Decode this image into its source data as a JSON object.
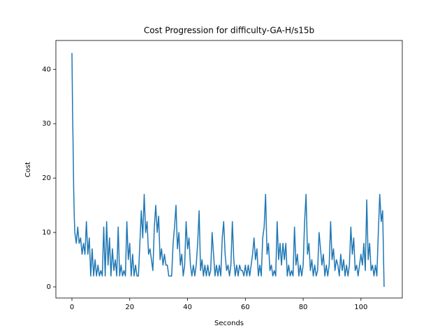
{
  "chart_data": {
    "type": "line",
    "title": "Cost Progression for difficulty-GA-H/s15b",
    "x_label": "Seconds",
    "y_label": "Cost",
    "x": [
      0,
      0.2,
      0.4,
      0.6,
      0.8,
      1,
      1.5,
      2,
      2.5,
      3,
      3.5,
      4,
      4.5,
      5,
      5.5,
      6,
      6.5,
      7,
      7.5,
      8,
      8.5,
      9,
      9.5,
      10,
      10.5,
      11,
      11.5,
      12,
      12.5,
      13,
      13.5,
      14,
      14.5,
      15,
      15.5,
      16,
      16.5,
      17,
      17.5,
      18,
      18.5,
      19,
      19.5,
      20,
      20.5,
      21,
      21.5,
      22,
      22.5,
      23,
      23.5,
      24,
      24.5,
      25,
      25.5,
      26,
      26.5,
      27,
      27.5,
      28,
      28.5,
      29,
      29.5,
      30,
      30.5,
      31,
      31.5,
      32,
      32.5,
      33,
      33.5,
      34,
      34.5,
      35,
      35.5,
      36,
      36.5,
      37,
      37.5,
      38,
      38.5,
      39,
      39.5,
      40,
      40.5,
      41,
      41.5,
      42,
      42.5,
      43,
      43.5,
      44,
      44.5,
      45,
      45.5,
      46,
      46.5,
      47,
      47.5,
      48,
      48.5,
      49,
      49.5,
      50,
      50.5,
      51,
      51.5,
      52,
      52.5,
      53,
      53.5,
      54,
      54.5,
      55,
      55.5,
      56,
      56.5,
      57,
      57.5,
      58,
      58.5,
      59,
      59.5,
      60,
      60.5,
      61,
      61.5,
      62,
      62.5,
      63,
      63.5,
      64,
      64.5,
      65,
      65.5,
      66,
      66.5,
      67,
      67.5,
      68,
      68.5,
      69,
      69.5,
      70,
      70.5,
      71,
      71.5,
      72,
      72.5,
      73,
      73.5,
      74,
      74.5,
      75,
      75.5,
      76,
      76.5,
      77,
      77.5,
      78,
      78.5,
      79,
      79.5,
      80,
      80.5,
      81,
      81.5,
      82,
      82.5,
      83,
      83.5,
      84,
      84.5,
      85,
      85.5,
      86,
      86.5,
      87,
      87.5,
      88,
      88.5,
      89,
      89.5,
      90,
      90.5,
      91,
      91.5,
      92,
      92.5,
      93,
      93.5,
      94,
      94.5,
      95,
      95.5,
      96,
      96.5,
      97,
      97.5,
      98,
      98.5,
      99,
      99.5,
      100,
      100.5,
      101,
      101.5,
      102,
      102.5,
      103,
      103.5,
      104,
      104.5,
      105,
      105.5,
      106,
      106.5,
      107,
      107.5,
      108
    ],
    "series": [
      {
        "color": "#1f77b4",
        "values": [
          43,
          33,
          26,
          18,
          13,
          10,
          8,
          11,
          8,
          9,
          6,
          8,
          6,
          12,
          6,
          9,
          2,
          7,
          2,
          5,
          2,
          4,
          2,
          3,
          2,
          11,
          2,
          12,
          4,
          9,
          2,
          7,
          3,
          5,
          2,
          11,
          2,
          4,
          2,
          3,
          2,
          12,
          5,
          8,
          2,
          6,
          2,
          4,
          2,
          2,
          8,
          14,
          9,
          17,
          10,
          12,
          6,
          7,
          5,
          3,
          11,
          15,
          10,
          13,
          5,
          7,
          4,
          6,
          4,
          4,
          2,
          2,
          2,
          8,
          11,
          15,
          7,
          10,
          4,
          6,
          2,
          4,
          12,
          7,
          9,
          4,
          2,
          4,
          2,
          4,
          8,
          14,
          3,
          5,
          2,
          4,
          2,
          4,
          2,
          3,
          10,
          6,
          2,
          4,
          2,
          4,
          2,
          9,
          12,
          6,
          3,
          4,
          2,
          4,
          12,
          5,
          2,
          4,
          2,
          4,
          3,
          3,
          2,
          4,
          2,
          4,
          2,
          4,
          6,
          9,
          5,
          7,
          2,
          4,
          2,
          9,
          11,
          17,
          6,
          8,
          3,
          4,
          2,
          3,
          2,
          12,
          5,
          8,
          4,
          8,
          5,
          8,
          2,
          4,
          2,
          3,
          2,
          11,
          4,
          6,
          2,
          4,
          2,
          4,
          12,
          17,
          6,
          8,
          3,
          5,
          2,
          4,
          2,
          3,
          10,
          7,
          4,
          6,
          2,
          4,
          2,
          4,
          12,
          5,
          7,
          3,
          5,
          4,
          2,
          6,
          3,
          5,
          2,
          4,
          2,
          4,
          11,
          6,
          9,
          3,
          4,
          2,
          4,
          6,
          4,
          8,
          3,
          16,
          5,
          8,
          3,
          4,
          2,
          4,
          2,
          10,
          17,
          12,
          14,
          0
        ]
      }
    ],
    "xlim": [
      -5.56,
      114.3
    ],
    "ylim": [
      -2.05,
      45.3
    ],
    "xticks": [
      0,
      20,
      40,
      60,
      80,
      100
    ],
    "yticks": [
      0,
      10,
      20,
      30,
      40
    ]
  }
}
